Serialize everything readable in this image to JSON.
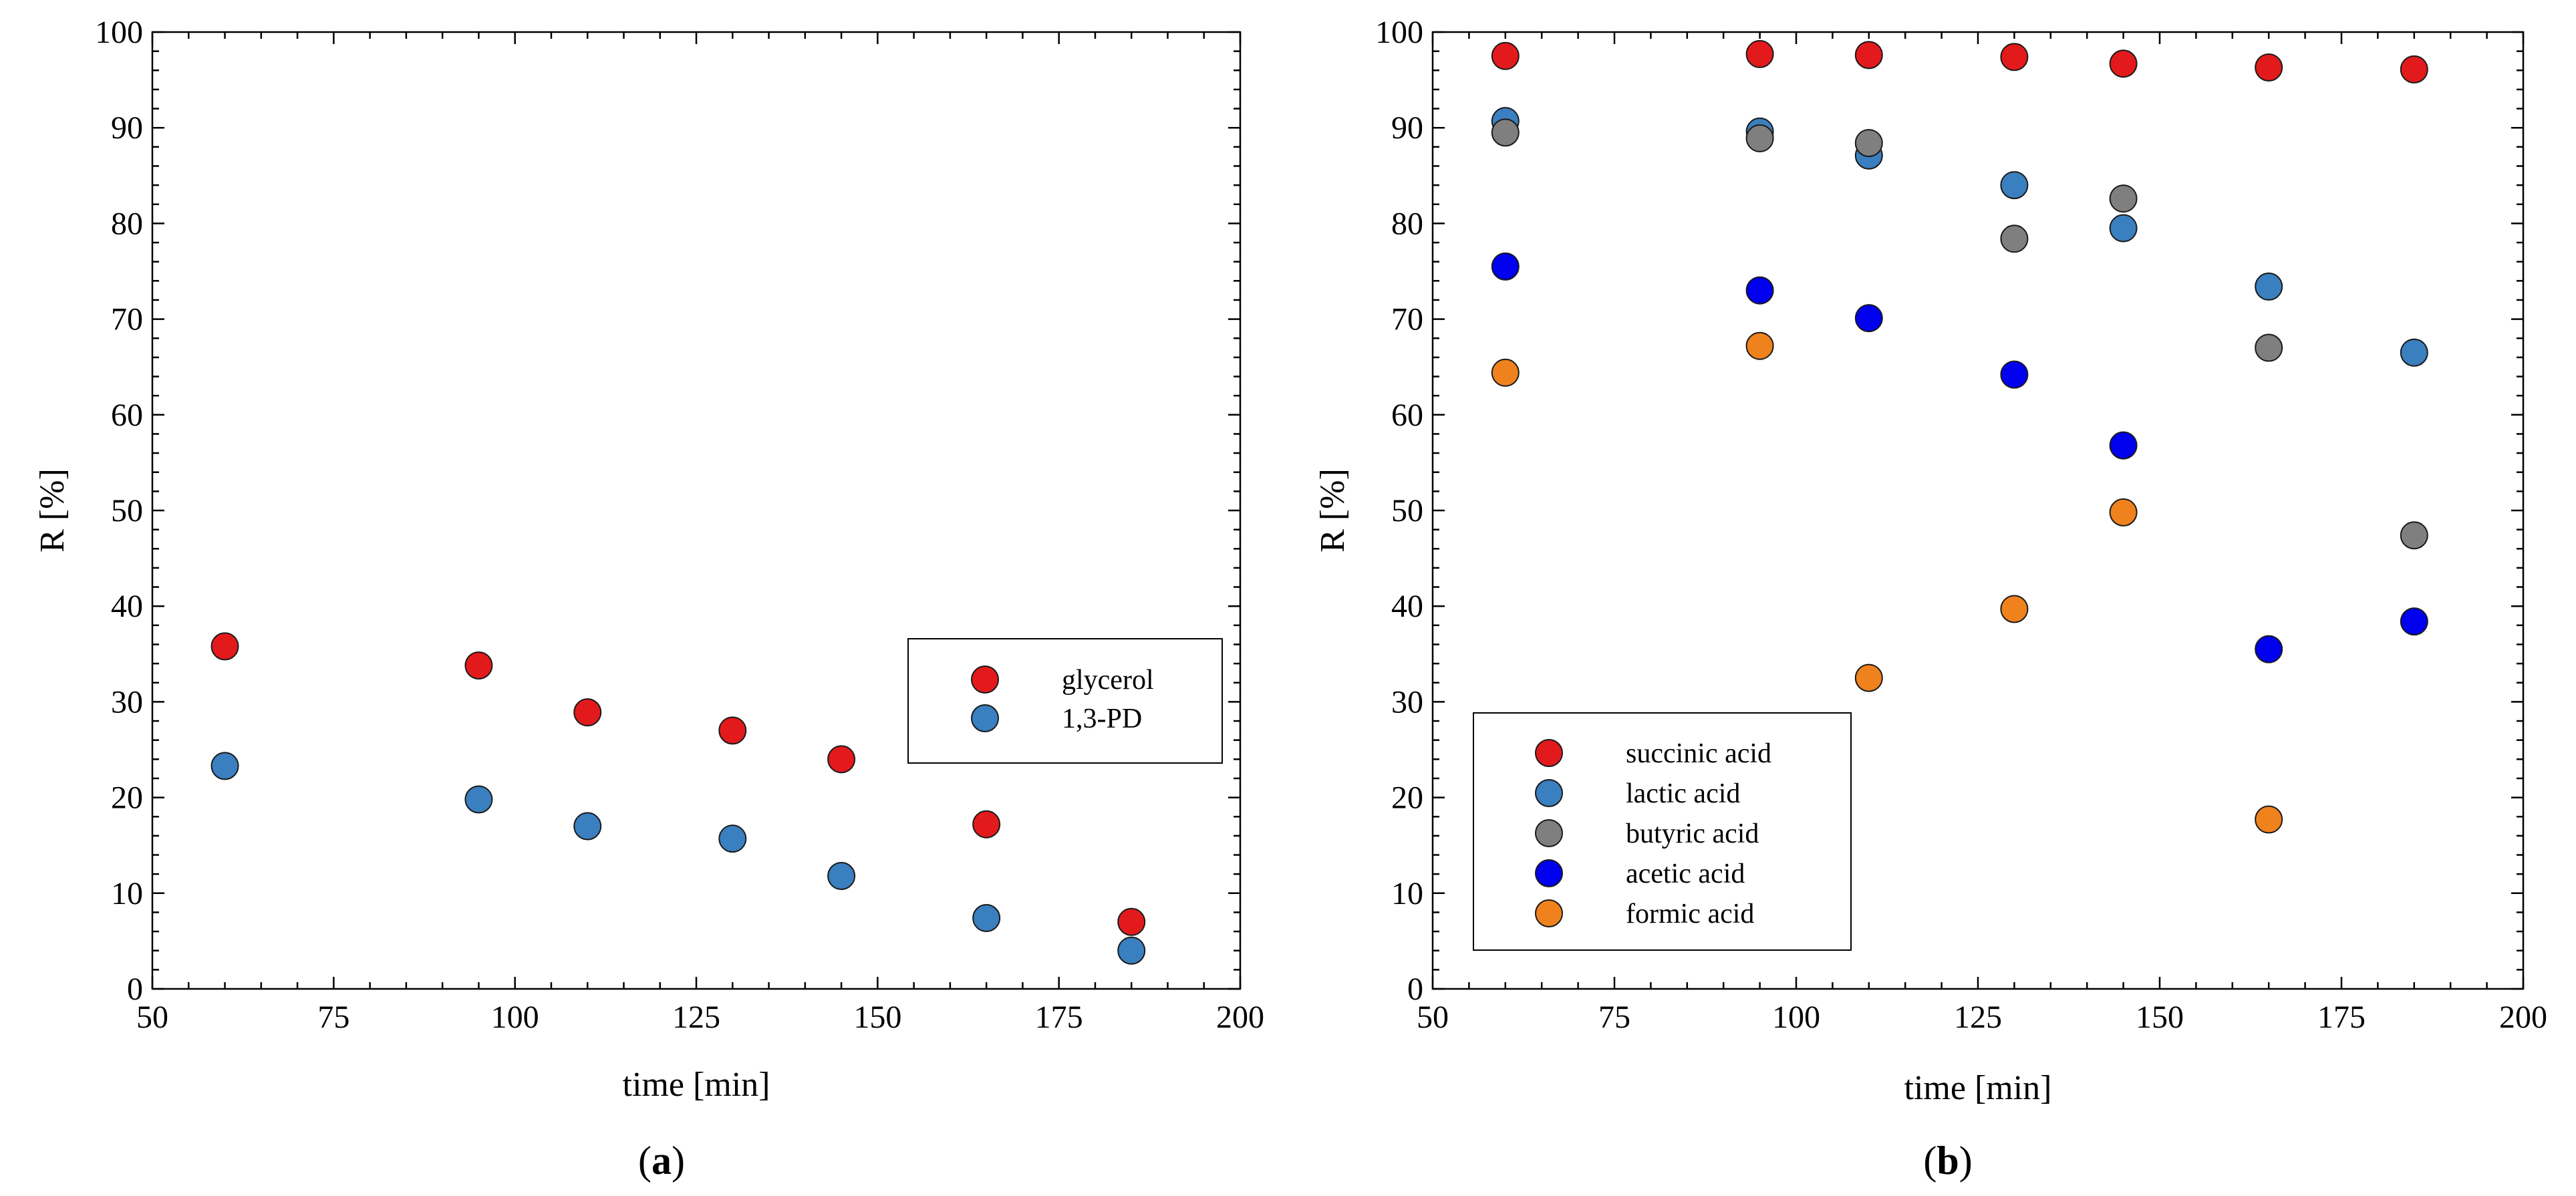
{
  "figure": {
    "panel_a_caption": {
      "open": "(",
      "letter": "a",
      "close": ")"
    },
    "panel_b_caption": {
      "open": "(",
      "letter": "b",
      "close": ")"
    }
  },
  "chart_data": [
    {
      "id": "a",
      "type": "scatter",
      "title": "",
      "xlabel": "time [min]",
      "ylabel": "R [%]",
      "xlim": [
        50,
        200
      ],
      "ylim": [
        0,
        100
      ],
      "xticks": [
        50,
        75,
        100,
        125,
        150,
        175,
        200
      ],
      "yticks": [
        0,
        10,
        20,
        30,
        40,
        50,
        60,
        70,
        80,
        90,
        100
      ],
      "grid": false,
      "legend_position": "right-middle",
      "series": [
        {
          "name": "glycerol",
          "color": "#e31a1c",
          "x": [
            60,
            95,
            110,
            130,
            145,
            165,
            185
          ],
          "y": [
            35.8,
            33.8,
            28.9,
            27.0,
            24.0,
            17.2,
            7.0
          ]
        },
        {
          "name": "1,3-PD",
          "color": "#3a7fbf",
          "x": [
            60,
            95,
            110,
            130,
            145,
            165,
            185
          ],
          "y": [
            23.3,
            19.8,
            17.0,
            15.7,
            11.8,
            7.4,
            4.0
          ]
        }
      ]
    },
    {
      "id": "b",
      "type": "scatter",
      "title": "",
      "xlabel": "time [min]",
      "ylabel": "R [%]",
      "xlim": [
        50,
        200
      ],
      "ylim": [
        0,
        100
      ],
      "xticks": [
        50,
        75,
        100,
        125,
        150,
        175,
        200
      ],
      "yticks": [
        0,
        10,
        20,
        30,
        40,
        50,
        60,
        70,
        80,
        90,
        100
      ],
      "grid": false,
      "legend_position": "bottom-left",
      "series": [
        {
          "name": "succinic acid",
          "color": "#e31a1c",
          "x": [
            60,
            95,
            110,
            130,
            145,
            165,
            185
          ],
          "y": [
            97.5,
            97.7,
            97.6,
            97.4,
            96.7,
            96.3,
            96.1
          ]
        },
        {
          "name": "lactic acid",
          "color": "#3a7fbf",
          "x": [
            60,
            95,
            110,
            130,
            145,
            165,
            185
          ],
          "y": [
            90.7,
            89.6,
            87.1,
            84.0,
            79.5,
            73.4,
            66.5
          ]
        },
        {
          "name": "butyric acid",
          "color": "#7f7f7f",
          "x": [
            60,
            95,
            110,
            130,
            145,
            165,
            185
          ],
          "y": [
            89.5,
            88.9,
            88.4,
            78.4,
            82.6,
            67.0,
            47.4
          ]
        },
        {
          "name": "acetic acid",
          "color": "#0000ee",
          "x": [
            60,
            95,
            110,
            130,
            145,
            165,
            185
          ],
          "y": [
            75.5,
            73.0,
            70.1,
            64.2,
            56.8,
            35.5,
            38.4
          ]
        },
        {
          "name": "formic acid",
          "color": "#f0821e",
          "x": [
            60,
            95,
            110,
            130,
            145,
            165
          ],
          "y": [
            64.4,
            67.2,
            32.5,
            39.7,
            49.8,
            17.7
          ]
        }
      ]
    }
  ]
}
